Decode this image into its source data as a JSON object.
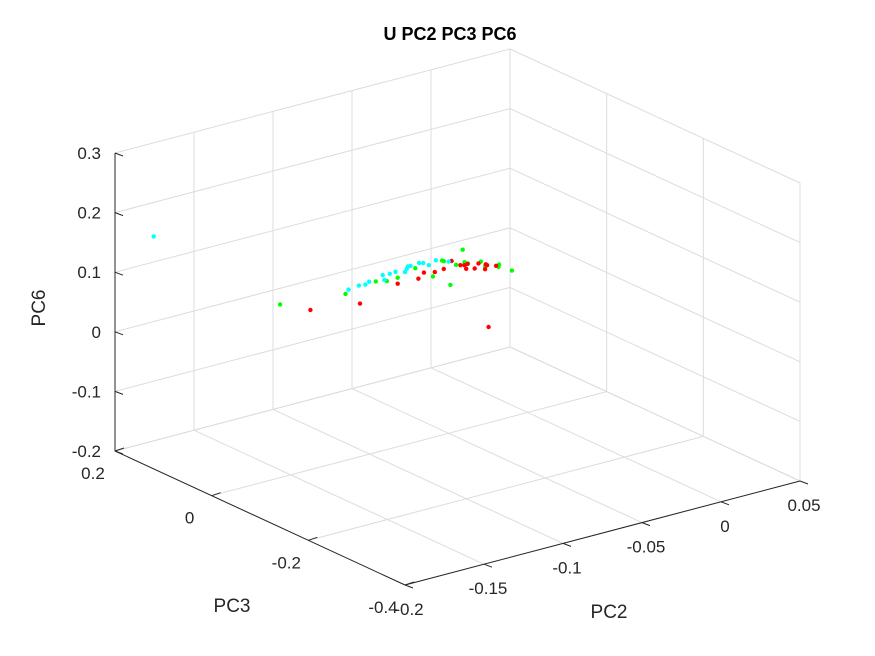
{
  "chart_data": {
    "type": "scatter",
    "title": "U PC2 PC3 PC6",
    "xlabel": "PC2",
    "ylabel": "PC3",
    "zlabel": "PC6",
    "xlim": [
      -0.2,
      0.05
    ],
    "ylim": [
      -0.4,
      0.2
    ],
    "zlim": [
      -0.2,
      0.3
    ],
    "xticks": [
      -0.2,
      -0.15,
      -0.1,
      -0.05,
      0,
      0.05
    ],
    "xtick_labels": [
      "-0.2",
      "-0.15",
      "-0.1",
      "-0.05",
      "0",
      "0.05"
    ],
    "yticks": [
      -0.4,
      -0.2,
      0,
      0.2
    ],
    "ytick_labels": [
      "-0.4",
      "-0.2",
      "0",
      "0.2"
    ],
    "zticks": [
      -0.2,
      -0.1,
      0,
      0.1,
      0.2,
      0.3
    ],
    "ztick_labels": [
      "-0.2",
      "-0.1",
      "0",
      "0.1",
      "0.2",
      "0.3"
    ],
    "grid": true,
    "series": [
      {
        "color": "#00ff00",
        "points": [
          [
            -0.05,
            0.01,
            0.085
          ],
          [
            -0.04,
            0.0,
            0.08
          ],
          [
            -0.03,
            -0.01,
            0.07
          ],
          [
            -0.035,
            0.02,
            0.09
          ],
          [
            -0.055,
            -0.02,
            0.06
          ],
          [
            -0.045,
            0.03,
            0.075
          ],
          [
            -0.025,
            0.015,
            0.065
          ],
          [
            -0.06,
            0.0,
            0.07
          ],
          [
            -0.065,
            0.02,
            0.08
          ],
          [
            -0.02,
            -0.005,
            0.06
          ],
          [
            -0.015,
            0.01,
            0.055
          ],
          [
            -0.01,
            0.0,
            0.045
          ],
          [
            -0.1,
            0.05,
            0.05
          ],
          [
            -0.07,
            0.04,
            0.06
          ],
          [
            -0.09,
            0.02,
            0.075
          ],
          [
            -0.08,
            0.03,
            0.065
          ],
          [
            -0.12,
            0.12,
            0.02
          ],
          [
            -0.05,
            -0.04,
            0.1
          ],
          [
            -0.03,
            0.05,
            0.05
          ]
        ]
      },
      {
        "color": "#ff0000",
        "points": [
          [
            -0.04,
            0.0,
            0.075
          ],
          [
            -0.035,
            0.01,
            0.07
          ],
          [
            -0.03,
            -0.01,
            0.065
          ],
          [
            -0.025,
            0.02,
            0.06
          ],
          [
            -0.045,
            -0.02,
            0.08
          ],
          [
            -0.02,
            0.0,
            0.06
          ],
          [
            -0.05,
            0.01,
            0.072
          ],
          [
            -0.038,
            0.015,
            0.068
          ],
          [
            -0.028,
            -0.005,
            0.07
          ],
          [
            -0.032,
            0.005,
            0.062
          ],
          [
            -0.042,
            0.02,
            0.076
          ],
          [
            -0.022,
            0.012,
            0.058
          ],
          [
            -0.06,
            0.03,
            0.055
          ],
          [
            -0.07,
            0.04,
            0.05
          ],
          [
            -0.1,
            0.02,
            0.045
          ],
          [
            -0.11,
            0.09,
            0.015
          ],
          [
            -0.04,
            -0.05,
            -0.01
          ],
          [
            -0.055,
            0.035,
            0.06
          ],
          [
            -0.045,
            0.045,
            0.05
          ]
        ]
      },
      {
        "color": "#00ffff",
        "points": [
          [
            -0.06,
            0.02,
            0.085
          ],
          [
            -0.065,
            0.03,
            0.08
          ],
          [
            -0.07,
            0.025,
            0.075
          ],
          [
            -0.055,
            0.01,
            0.09
          ],
          [
            -0.075,
            0.04,
            0.07
          ],
          [
            -0.08,
            0.035,
            0.065
          ],
          [
            -0.05,
            0.0,
            0.088
          ],
          [
            -0.058,
            0.015,
            0.082
          ],
          [
            -0.068,
            0.028,
            0.078
          ],
          [
            -0.072,
            0.038,
            0.072
          ],
          [
            -0.062,
            0.022,
            0.086
          ],
          [
            -0.085,
            0.05,
            0.06
          ],
          [
            -0.09,
            0.055,
            0.055
          ],
          [
            -0.078,
            0.045,
            0.068
          ],
          [
            -0.066,
            0.032,
            0.079
          ],
          [
            -0.2,
            0.12,
            0.19
          ],
          [
            -0.095,
            0.06,
            0.05
          ],
          [
            -0.088,
            0.048,
            0.058
          ]
        ]
      }
    ]
  }
}
